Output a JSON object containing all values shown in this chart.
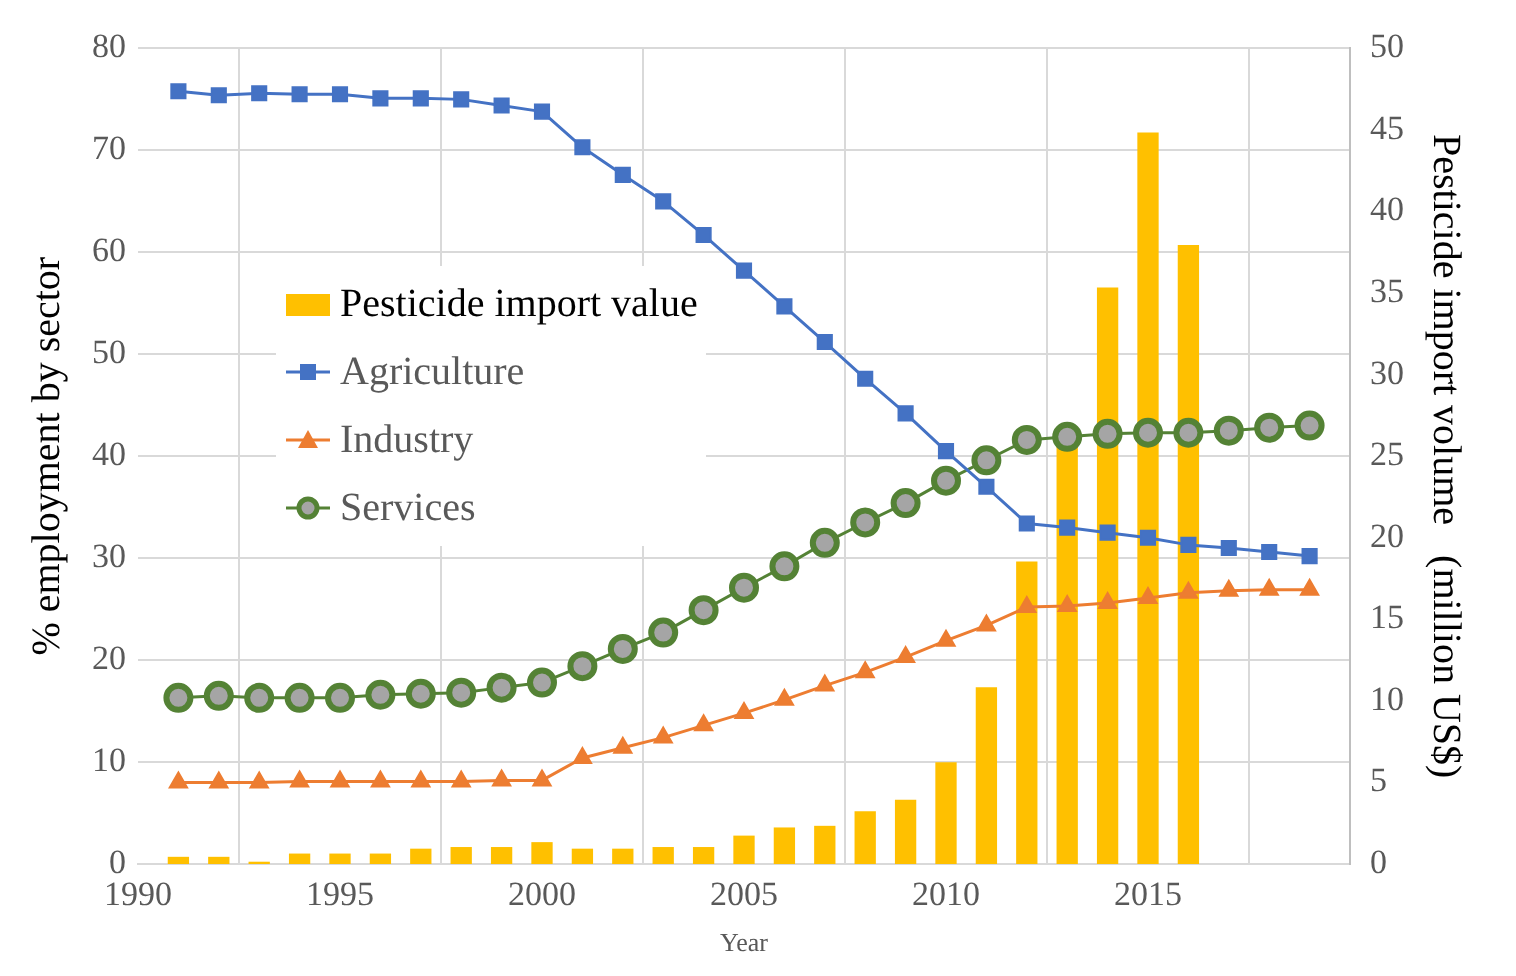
{
  "chart_data": {
    "type": "line",
    "xlabel": "Year",
    "ylabel": "% employment by sector",
    "y2label": "Pesticide import volume   (million US$)",
    "x": [
      1991,
      1992,
      1993,
      1994,
      1995,
      1996,
      1997,
      1998,
      1999,
      2000,
      2001,
      2002,
      2003,
      2004,
      2005,
      2006,
      2007,
      2008,
      2009,
      2010,
      2011,
      2012,
      2013,
      2014,
      2015,
      2016,
      2017,
      2018,
      2019
    ],
    "xlim": [
      1990,
      2020
    ],
    "xticks": [
      1990,
      1995,
      2000,
      2005,
      2010,
      2015,
      {
        "value": 2020,
        "label": null
      }
    ],
    "ylim": [
      0,
      80
    ],
    "yticks": [
      0,
      10,
      20,
      30,
      40,
      50,
      60,
      70,
      80
    ],
    "y2lim": [
      0,
      50
    ],
    "y2ticks": [
      0,
      5,
      10,
      15,
      20,
      25,
      30,
      35,
      40,
      45,
      50
    ],
    "grid": true,
    "legend": "center left",
    "series": [
      {
        "name": "Pesticide import value",
        "type": "bar",
        "axis": "y2",
        "color": "#ffc000",
        "x": [
          1991,
          1992,
          1993,
          1994,
          1995,
          1996,
          1997,
          1998,
          1999,
          2000,
          2001,
          2002,
          2003,
          2004,
          2005,
          2006,
          2007,
          2008,
          2009,
          2010,
          2011,
          2012,
          2013,
          2014,
          2015,
          2016
        ],
        "values": [
          0.4,
          0.4,
          0.1,
          0.6,
          0.6,
          0.6,
          0.9,
          1.0,
          1.0,
          1.3,
          0.9,
          0.9,
          1.0,
          1.0,
          1.7,
          2.2,
          2.3,
          3.2,
          3.9,
          6.2,
          10.8,
          18.5,
          25.8,
          35.3,
          44.8,
          37.9
        ]
      },
      {
        "name": "Agriculture",
        "color": "#4472c4",
        "marker": "square",
        "values": [
          75.8,
          75.4,
          75.6,
          75.5,
          75.5,
          75.1,
          75.1,
          75.0,
          74.4,
          73.8,
          70.3,
          67.6,
          65.0,
          61.7,
          58.2,
          54.7,
          51.2,
          47.6,
          44.2,
          40.5,
          37.0,
          33.4,
          33.0,
          32.5,
          32.0,
          31.3,
          31.0,
          30.6,
          30.2
        ]
      },
      {
        "name": "Industry",
        "color": "#ed7d31",
        "marker": "triangle",
        "values": [
          8.0,
          8.0,
          8.0,
          8.1,
          8.1,
          8.1,
          8.1,
          8.1,
          8.2,
          8.2,
          10.4,
          11.4,
          12.4,
          13.6,
          14.8,
          16.1,
          17.5,
          18.8,
          20.3,
          21.9,
          23.4,
          25.2,
          25.3,
          25.6,
          26.1,
          26.6,
          26.8,
          26.9,
          26.9
        ]
      },
      {
        "name": "Services",
        "color": "#548235",
        "marker": "circle",
        "values": [
          16.3,
          16.5,
          16.3,
          16.3,
          16.3,
          16.6,
          16.7,
          16.8,
          17.3,
          17.8,
          19.4,
          21.1,
          22.7,
          24.9,
          27.1,
          29.2,
          31.5,
          33.5,
          35.4,
          37.6,
          39.6,
          41.6,
          41.9,
          42.2,
          42.3,
          42.3,
          42.5,
          42.8,
          43.0
        ]
      }
    ]
  }
}
